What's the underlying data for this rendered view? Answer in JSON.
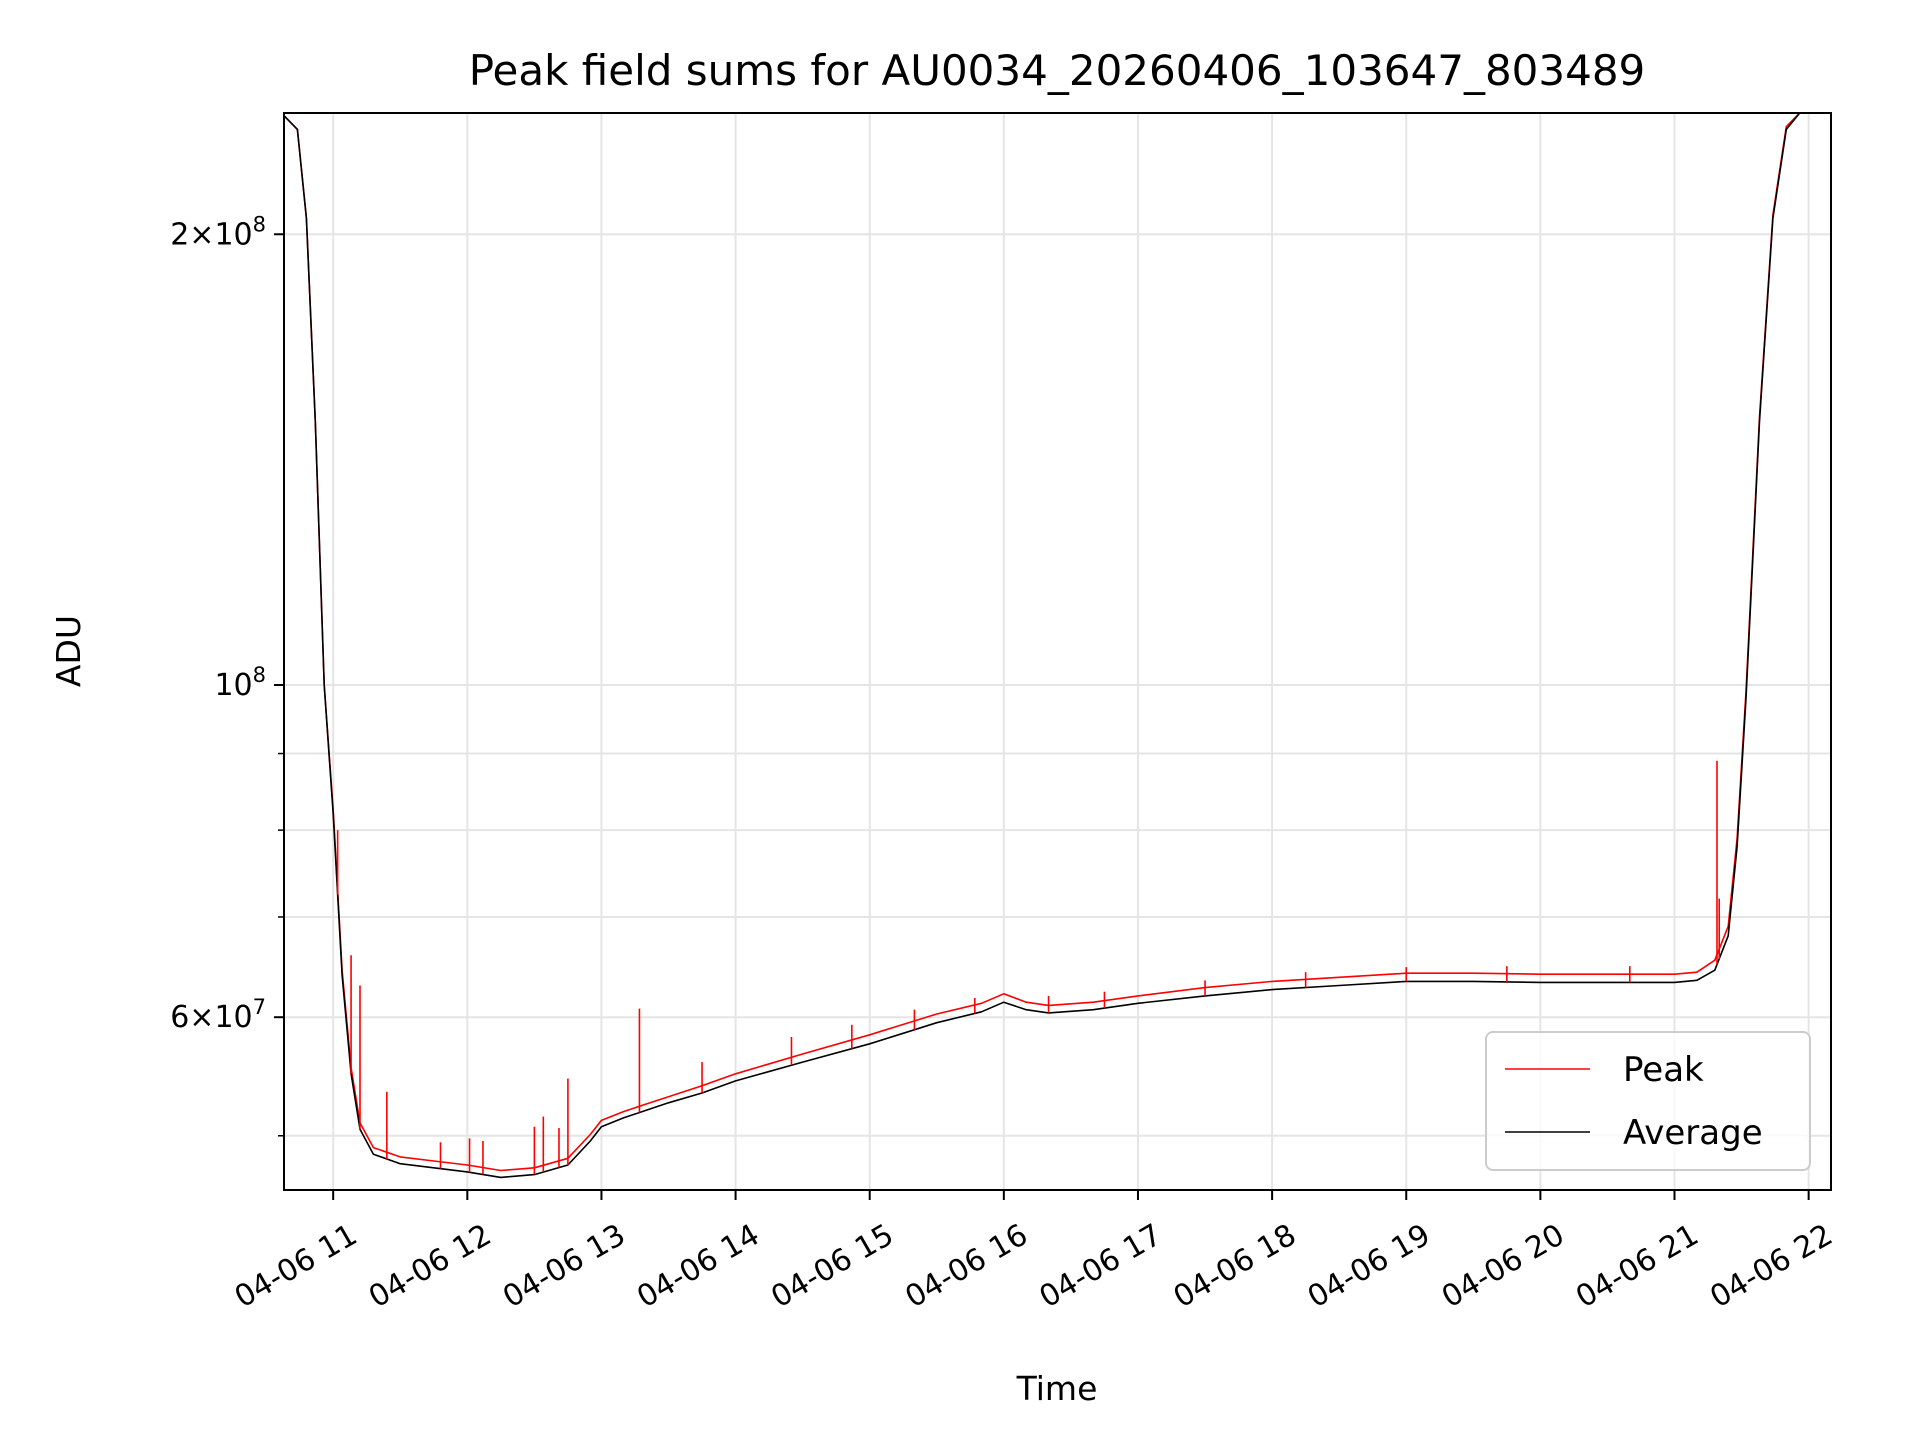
{
  "chart_data": {
    "type": "line",
    "title": "Peak field sums for AU0034_20260406_103647_803489",
    "xlabel": "Time",
    "ylabel": "ADU",
    "x_scale": "time",
    "y_scale": "log",
    "xlim": [
      "2026-04-06 10:38",
      "2026-04-06 22:10"
    ],
    "ylim": [
      46000000,
      241000000
    ],
    "grid": true,
    "legend_position": "lower right",
    "x_ticks": [
      {
        "value": "2026-04-06 11:00",
        "label": "04-06 11"
      },
      {
        "value": "2026-04-06 12:00",
        "label": "04-06 12"
      },
      {
        "value": "2026-04-06 13:00",
        "label": "04-06 13"
      },
      {
        "value": "2026-04-06 14:00",
        "label": "04-06 14"
      },
      {
        "value": "2026-04-06 15:00",
        "label": "04-06 15"
      },
      {
        "value": "2026-04-06 16:00",
        "label": "04-06 16"
      },
      {
        "value": "2026-04-06 17:00",
        "label": "04-06 17"
      },
      {
        "value": "2026-04-06 18:00",
        "label": "04-06 18"
      },
      {
        "value": "2026-04-06 19:00",
        "label": "04-06 19"
      },
      {
        "value": "2026-04-06 20:00",
        "label": "04-06 20"
      },
      {
        "value": "2026-04-06 21:00",
        "label": "04-06 21"
      },
      {
        "value": "2026-04-06 22:00",
        "label": "04-06 22"
      }
    ],
    "y_major_ticks": [
      {
        "value": 100000000,
        "base": "10",
        "exp": "8"
      },
      {
        "value": 200000000,
        "mant": "2",
        "base": "10",
        "exp": "8"
      },
      {
        "value": 60000000,
        "mant": "6",
        "base": "10",
        "exp": "7"
      }
    ],
    "y_minor_ticks": [
      50000000,
      70000000,
      80000000,
      90000000
    ],
    "series": [
      {
        "name": "Average",
        "color": "#000000",
        "points": [
          [
            "2026-04-06 10:38",
            240000000
          ],
          [
            "2026-04-06 10:44",
            235000000
          ],
          [
            "2026-04-06 10:48",
            205000000
          ],
          [
            "2026-04-06 10:52",
            150000000
          ],
          [
            "2026-04-06 10:56",
            100000000
          ],
          [
            "2026-04-06 11:00",
            82000000
          ],
          [
            "2026-04-06 11:04",
            64000000
          ],
          [
            "2026-04-06 11:08",
            55000000
          ],
          [
            "2026-04-06 11:12",
            50500000
          ],
          [
            "2026-04-06 11:18",
            48600000
          ],
          [
            "2026-04-06 11:30",
            47900000
          ],
          [
            "2026-04-06 11:45",
            47600000
          ],
          [
            "2026-04-06 12:00",
            47300000
          ],
          [
            "2026-04-06 12:15",
            46900000
          ],
          [
            "2026-04-06 12:30",
            47100000
          ],
          [
            "2026-04-06 12:45",
            47800000
          ],
          [
            "2026-04-06 12:55",
            49600000
          ],
          [
            "2026-04-06 13:00",
            50700000
          ],
          [
            "2026-04-06 13:10",
            51400000
          ],
          [
            "2026-04-06 13:20",
            52000000
          ],
          [
            "2026-04-06 13:30",
            52600000
          ],
          [
            "2026-04-06 13:45",
            53400000
          ],
          [
            "2026-04-06 14:00",
            54400000
          ],
          [
            "2026-04-06 14:30",
            56000000
          ],
          [
            "2026-04-06 15:00",
            57600000
          ],
          [
            "2026-04-06 15:30",
            59500000
          ],
          [
            "2026-04-06 15:50",
            60500000
          ],
          [
            "2026-04-06 16:00",
            61400000
          ],
          [
            "2026-04-06 16:10",
            60700000
          ],
          [
            "2026-04-06 16:20",
            60400000
          ],
          [
            "2026-04-06 16:40",
            60700000
          ],
          [
            "2026-04-06 17:00",
            61300000
          ],
          [
            "2026-04-06 17:30",
            62000000
          ],
          [
            "2026-04-06 18:00",
            62600000
          ],
          [
            "2026-04-06 18:30",
            63000000
          ],
          [
            "2026-04-06 19:00",
            63400000
          ],
          [
            "2026-04-06 19:30",
            63400000
          ],
          [
            "2026-04-06 20:00",
            63300000
          ],
          [
            "2026-04-06 20:30",
            63300000
          ],
          [
            "2026-04-06 21:00",
            63300000
          ],
          [
            "2026-04-06 21:10",
            63500000
          ],
          [
            "2026-04-06 21:18",
            64500000
          ],
          [
            "2026-04-06 21:24",
            68000000
          ],
          [
            "2026-04-06 21:28",
            78000000
          ],
          [
            "2026-04-06 21:32",
            98000000
          ],
          [
            "2026-04-06 21:38",
            150000000
          ],
          [
            "2026-04-06 21:44",
            205000000
          ],
          [
            "2026-04-06 21:50",
            235000000
          ],
          [
            "2026-04-06 21:56",
            241000000
          ]
        ]
      },
      {
        "name": "Peak",
        "color": "#ff0000",
        "points": [
          [
            "2026-04-06 10:38",
            240000000
          ],
          [
            "2026-04-06 10:44",
            235000000
          ],
          [
            "2026-04-06 10:48",
            205000000
          ],
          [
            "2026-04-06 10:52",
            150000000
          ],
          [
            "2026-04-06 10:56",
            100000000
          ],
          [
            "2026-04-06 11:00",
            82500000
          ],
          [
            "2026-04-06 11:04",
            64500000
          ],
          [
            "2026-04-06 11:08",
            55500000
          ],
          [
            "2026-04-06 11:12",
            51000000
          ],
          [
            "2026-04-06 11:18",
            49100000
          ],
          [
            "2026-04-06 11:30",
            48400000
          ],
          [
            "2026-04-06 11:45",
            48100000
          ],
          [
            "2026-04-06 12:00",
            47800000
          ],
          [
            "2026-04-06 12:15",
            47400000
          ],
          [
            "2026-04-06 12:30",
            47600000
          ],
          [
            "2026-04-06 12:45",
            48300000
          ],
          [
            "2026-04-06 12:55",
            50100000
          ],
          [
            "2026-04-06 13:00",
            51200000
          ],
          [
            "2026-04-06 13:10",
            51900000
          ],
          [
            "2026-04-06 13:20",
            52500000
          ],
          [
            "2026-04-06 13:30",
            53100000
          ],
          [
            "2026-04-06 13:45",
            54000000
          ],
          [
            "2026-04-06 14:00",
            55000000
          ],
          [
            "2026-04-06 14:30",
            56700000
          ],
          [
            "2026-04-06 15:00",
            58400000
          ],
          [
            "2026-04-06 15:30",
            60300000
          ],
          [
            "2026-04-06 15:50",
            61300000
          ],
          [
            "2026-04-06 16:00",
            62200000
          ],
          [
            "2026-04-06 16:10",
            61400000
          ],
          [
            "2026-04-06 16:20",
            61100000
          ],
          [
            "2026-04-06 16:40",
            61400000
          ],
          [
            "2026-04-06 17:00",
            62000000
          ],
          [
            "2026-04-06 17:30",
            62800000
          ],
          [
            "2026-04-06 18:00",
            63400000
          ],
          [
            "2026-04-06 18:30",
            63800000
          ],
          [
            "2026-04-06 19:00",
            64200000
          ],
          [
            "2026-04-06 19:30",
            64200000
          ],
          [
            "2026-04-06 20:00",
            64100000
          ],
          [
            "2026-04-06 20:30",
            64100000
          ],
          [
            "2026-04-06 21:00",
            64100000
          ],
          [
            "2026-04-06 21:10",
            64300000
          ],
          [
            "2026-04-06 21:18",
            65500000
          ],
          [
            "2026-04-06 21:24",
            69000000
          ],
          [
            "2026-04-06 21:28",
            79000000
          ],
          [
            "2026-04-06 21:32",
            99000000
          ],
          [
            "2026-04-06 21:38",
            151000000
          ],
          [
            "2026-04-06 21:44",
            206000000
          ],
          [
            "2026-04-06 21:50",
            236000000
          ],
          [
            "2026-04-06 21:56",
            241000000
          ]
        ],
        "spikes": [
          [
            "2026-04-06 11:02",
            80000000
          ],
          [
            "2026-04-06 11:08",
            66000000
          ],
          [
            "2026-04-06 11:12",
            63000000
          ],
          [
            "2026-04-06 11:24",
            53500000
          ],
          [
            "2026-04-06 11:48",
            49500000
          ],
          [
            "2026-04-06 12:01",
            49800000
          ],
          [
            "2026-04-06 12:07",
            49600000
          ],
          [
            "2026-04-06 12:30",
            50700000
          ],
          [
            "2026-04-06 12:34",
            51500000
          ],
          [
            "2026-04-06 12:41",
            50600000
          ],
          [
            "2026-04-06 12:45",
            54600000
          ],
          [
            "2026-04-06 13:17",
            60800000
          ],
          [
            "2026-04-06 13:45",
            56000000
          ],
          [
            "2026-04-06 14:25",
            58200000
          ],
          [
            "2026-04-06 14:52",
            59300000
          ],
          [
            "2026-04-06 15:20",
            60700000
          ],
          [
            "2026-04-06 15:47",
            61800000
          ],
          [
            "2026-04-06 16:20",
            62000000
          ],
          [
            "2026-04-06 16:45",
            62400000
          ],
          [
            "2026-04-06 17:30",
            63500000
          ],
          [
            "2026-04-06 18:15",
            64300000
          ],
          [
            "2026-04-06 19:00",
            64800000
          ],
          [
            "2026-04-06 19:45",
            64900000
          ],
          [
            "2026-04-06 20:40",
            64900000
          ],
          [
            "2026-04-06 21:19",
            89000000
          ],
          [
            "2026-04-06 21:20",
            72000000
          ]
        ]
      }
    ]
  }
}
